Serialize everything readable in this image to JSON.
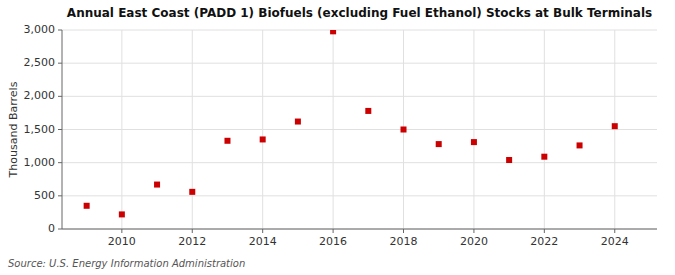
{
  "chart_data": {
    "type": "scatter",
    "title": "Annual East Coast (PADD 1) Biofuels (excluding Fuel Ethanol) Stocks at Bulk Terminals",
    "y_label": "Thousand Barrels",
    "annotation": "Source: U.S. Energy Information Administration",
    "x": [
      2009,
      2010,
      2011,
      2012,
      2013,
      2014,
      2015,
      2016,
      2017,
      2018,
      2019,
      2020,
      2021,
      2022,
      2023,
      2024
    ],
    "values": [
      350,
      220,
      670,
      560,
      1330,
      1350,
      1620,
      2980,
      1780,
      1500,
      1280,
      1310,
      1040,
      1090,
      1260,
      1550
    ],
    "color": "#cc0000",
    "marker": "square",
    "xlim": [
      2008.3,
      2025.2
    ],
    "xticks": [
      2010,
      2012,
      2014,
      2016,
      2018,
      2020,
      2022,
      2024
    ],
    "ylim": [
      0,
      3000
    ],
    "yticks": [
      0,
      500,
      {
        "value": 1000,
        "label": "1,000"
      },
      {
        "value": 1500,
        "label": "1,500"
      },
      {
        "value": 2000,
        "label": "2,000"
      },
      {
        "value": 2500,
        "label": "2,500"
      },
      {
        "value": 3000,
        "label": "3,000"
      }
    ],
    "grid": true
  }
}
